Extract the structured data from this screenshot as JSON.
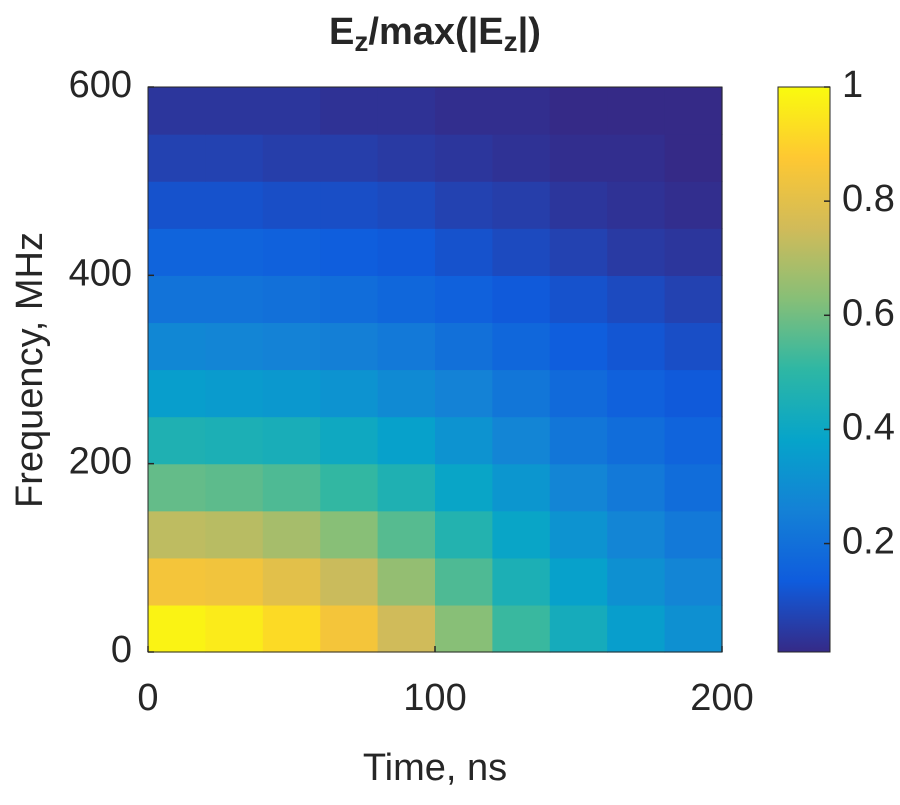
{
  "chart_data": {
    "type": "heatmap",
    "title": [
      "E",
      "z",
      "/max(|E",
      "z",
      "|)"
    ],
    "xlabel": "Time, ns",
    "ylabel": "Frequency, MHz",
    "x": [
      10,
      30,
      50,
      70,
      90,
      110,
      130,
      150,
      170,
      190
    ],
    "y": [
      25,
      75,
      125,
      175,
      225,
      275,
      325,
      375,
      425,
      475,
      525,
      575
    ],
    "z": [
      [
        0.98,
        0.96,
        0.92,
        0.85,
        0.75,
        0.63,
        0.52,
        0.43,
        0.36,
        0.31
      ],
      [
        0.85,
        0.84,
        0.8,
        0.74,
        0.65,
        0.55,
        0.45,
        0.37,
        0.31,
        0.27
      ],
      [
        0.72,
        0.71,
        0.68,
        0.63,
        0.56,
        0.47,
        0.39,
        0.32,
        0.27,
        0.23
      ],
      [
        0.58,
        0.57,
        0.55,
        0.51,
        0.46,
        0.39,
        0.33,
        0.27,
        0.23,
        0.19
      ],
      [
        0.46,
        0.45,
        0.44,
        0.41,
        0.37,
        0.32,
        0.27,
        0.22,
        0.19,
        0.16
      ],
      [
        0.36,
        0.35,
        0.34,
        0.32,
        0.29,
        0.26,
        0.22,
        0.18,
        0.15,
        0.13
      ],
      [
        0.28,
        0.27,
        0.26,
        0.25,
        0.23,
        0.2,
        0.17,
        0.14,
        0.12,
        0.1
      ],
      [
        0.21,
        0.21,
        0.2,
        0.19,
        0.17,
        0.15,
        0.13,
        0.11,
        0.09,
        0.07
      ],
      [
        0.16,
        0.16,
        0.15,
        0.14,
        0.13,
        0.11,
        0.09,
        0.07,
        0.05,
        0.04
      ],
      [
        0.11,
        0.11,
        0.1,
        0.1,
        0.09,
        0.07,
        0.06,
        0.04,
        0.03,
        0.02
      ],
      [
        0.07,
        0.07,
        0.06,
        0.06,
        0.05,
        0.04,
        0.03,
        0.02,
        0.02,
        0.01
      ],
      [
        0.04,
        0.04,
        0.04,
        0.03,
        0.03,
        0.02,
        0.02,
        0.01,
        0.01,
        0.01
      ]
    ],
    "xlim": [
      0,
      200
    ],
    "xticks": [
      0,
      100,
      200
    ],
    "ylim": [
      0,
      600
    ],
    "yticks": [
      0,
      200,
      400,
      600
    ],
    "clim": [
      0.01,
      1
    ],
    "cticks": [
      0.2,
      0.4,
      0.6,
      0.8,
      1
    ],
    "colormap": [
      "#352a87",
      "#0f5cdd",
      "#1481d6",
      "#06a4ca",
      "#2eb7a4",
      "#87bf77",
      "#d1bb59",
      "#fec832",
      "#f9fb0e"
    ]
  }
}
